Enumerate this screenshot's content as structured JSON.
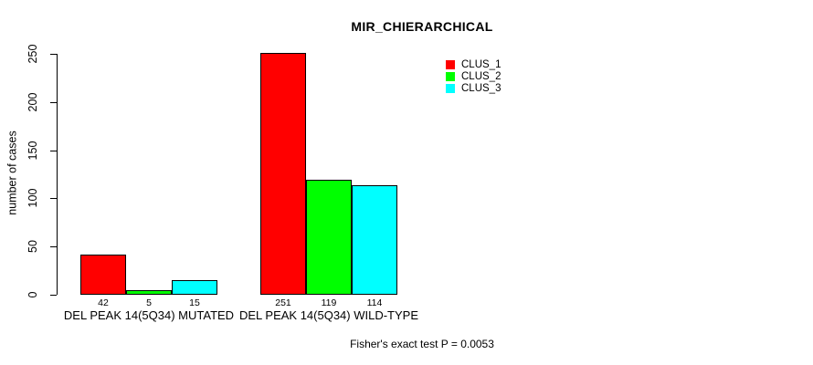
{
  "figure": {
    "background": "#ffffff",
    "text_color": "#000000"
  },
  "chart_data": {
    "type": "bar",
    "title": "MIR_CHIERARCHICAL",
    "xlabel": "",
    "ylabel": "number of cases",
    "ylim": [
      0,
      250
    ],
    "yticks": [
      0,
      50,
      100,
      150,
      200,
      250
    ],
    "grid": false,
    "bar_border_color": "#000000",
    "categories": [
      "DEL PEAK 14(5Q34) MUTATED",
      "DEL PEAK 14(5Q34) WILD-TYPE"
    ],
    "series": [
      {
        "name": "CLUS_1",
        "color": "#ff0000",
        "values": [
          42,
          251
        ]
      },
      {
        "name": "CLUS_2",
        "color": "#00ff00",
        "values": [
          5,
          119
        ]
      },
      {
        "name": "CLUS_3",
        "color": "#00ffff",
        "values": [
          15,
          114
        ]
      }
    ],
    "bar_value_labels": [
      [
        42,
        5,
        15
      ],
      [
        251,
        119,
        114
      ]
    ],
    "legend": {
      "position": "top-right",
      "entries": [
        "CLUS_1",
        "CLUS_2",
        "CLUS_3"
      ]
    },
    "annotation": "Fisher's exact test P = 0.0053"
  }
}
